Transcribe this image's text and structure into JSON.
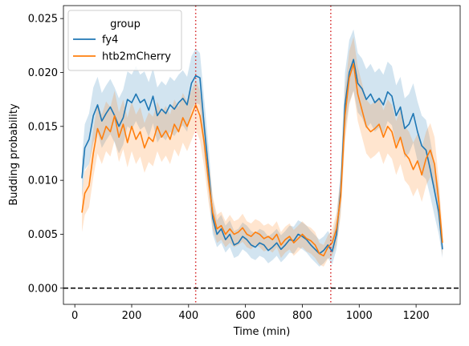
{
  "chart_data": {
    "type": "line",
    "title": "",
    "xlabel": "Time (min)",
    "ylabel": "Budding probability",
    "xlim": [
      -40,
      1355
    ],
    "ylim": [
      -0.0015,
      0.0262
    ],
    "xticks": [
      0,
      200,
      400,
      600,
      800,
      1000,
      1200
    ],
    "xtick_labels": [
      "0",
      "200",
      "400",
      "600",
      "800",
      "1000",
      "1200"
    ],
    "yticks": [
      0.0,
      0.005,
      0.01,
      0.015,
      0.02,
      0.025
    ],
    "ytick_labels": [
      "0.000",
      "0.005",
      "0.010",
      "0.015",
      "0.020",
      "0.025"
    ],
    "grid": false,
    "legend": {
      "title": "group",
      "placement": "upper-left"
    },
    "vlines": [
      {
        "x": 425,
        "style": "dotted",
        "color": "#d62728"
      },
      {
        "x": 900,
        "style": "dotted",
        "color": "#d62728"
      }
    ],
    "hlines": [
      {
        "y": 0.0,
        "style": "dashed",
        "color": "#000000"
      }
    ],
    "series": [
      {
        "name": "fy4",
        "color": "#1f77b4",
        "x": [
          25,
          35,
          50,
          65,
          80,
          95,
          110,
          125,
          140,
          155,
          170,
          185,
          200,
          215,
          230,
          245,
          260,
          275,
          290,
          305,
          320,
          335,
          350,
          365,
          380,
          395,
          410,
          425,
          440,
          455,
          470,
          485,
          500,
          515,
          530,
          545,
          560,
          575,
          590,
          605,
          620,
          635,
          650,
          665,
          680,
          695,
          710,
          725,
          740,
          755,
          770,
          785,
          800,
          815,
          830,
          845,
          860,
          875,
          890,
          905,
          920,
          935,
          950,
          965,
          980,
          995,
          1010,
          1025,
          1040,
          1055,
          1070,
          1085,
          1100,
          1115,
          1130,
          1145,
          1160,
          1175,
          1190,
          1205,
          1220,
          1235,
          1250,
          1265,
          1280,
          1293
        ],
        "y": [
          0.0102,
          0.013,
          0.0138,
          0.016,
          0.017,
          0.0155,
          0.0162,
          0.0168,
          0.016,
          0.015,
          0.0158,
          0.0175,
          0.0172,
          0.018,
          0.0172,
          0.0175,
          0.0165,
          0.0178,
          0.016,
          0.0166,
          0.0162,
          0.017,
          0.0166,
          0.0172,
          0.0176,
          0.017,
          0.019,
          0.0197,
          0.0195,
          0.015,
          0.011,
          0.0065,
          0.005,
          0.0055,
          0.0045,
          0.005,
          0.004,
          0.0042,
          0.0048,
          0.0045,
          0.004,
          0.0038,
          0.0042,
          0.004,
          0.0035,
          0.0038,
          0.0042,
          0.0036,
          0.004,
          0.0045,
          0.0044,
          0.005,
          0.0048,
          0.0045,
          0.004,
          0.0036,
          0.0032,
          0.0035,
          0.004,
          0.0034,
          0.005,
          0.009,
          0.017,
          0.02,
          0.0212,
          0.019,
          0.0185,
          0.0175,
          0.018,
          0.0172,
          0.0176,
          0.017,
          0.0182,
          0.0178,
          0.016,
          0.0168,
          0.0148,
          0.0152,
          0.0162,
          0.0145,
          0.0132,
          0.0128,
          0.011,
          0.009,
          0.007,
          0.0036
        ],
        "lo": [
          0.0085,
          0.011,
          0.0115,
          0.0135,
          0.0145,
          0.013,
          0.0137,
          0.0143,
          0.0135,
          0.0125,
          0.0133,
          0.015,
          0.0147,
          0.0155,
          0.0147,
          0.015,
          0.014,
          0.0153,
          0.0135,
          0.0141,
          0.0137,
          0.0145,
          0.0141,
          0.0147,
          0.0151,
          0.0145,
          0.0165,
          0.0172,
          0.017,
          0.0125,
          0.009,
          0.005,
          0.0038,
          0.0042,
          0.0033,
          0.0038,
          0.0028,
          0.003,
          0.0036,
          0.0033,
          0.0028,
          0.0026,
          0.003,
          0.0028,
          0.0023,
          0.0026,
          0.003,
          0.0024,
          0.0028,
          0.0033,
          0.0032,
          0.0038,
          0.0036,
          0.0033,
          0.0028,
          0.0024,
          0.002,
          0.0023,
          0.0028,
          0.0022,
          0.0036,
          0.0072,
          0.0145,
          0.0172,
          0.0183,
          0.0163,
          0.0158,
          0.0148,
          0.0153,
          0.0145,
          0.0149,
          0.0143,
          0.0155,
          0.0151,
          0.0133,
          0.0141,
          0.0121,
          0.0125,
          0.0135,
          0.0118,
          0.0105,
          0.0101,
          0.0085,
          0.0067,
          0.005,
          0.0028
        ],
        "hi": [
          0.012,
          0.0152,
          0.0162,
          0.0186,
          0.0196,
          0.0181,
          0.0188,
          0.0194,
          0.0186,
          0.0176,
          0.0184,
          0.0201,
          0.0198,
          0.0206,
          0.0198,
          0.0201,
          0.0191,
          0.0204,
          0.0186,
          0.0192,
          0.0188,
          0.0196,
          0.0192,
          0.0198,
          0.0202,
          0.0196,
          0.0215,
          0.0222,
          0.0218,
          0.0175,
          0.0132,
          0.0082,
          0.0063,
          0.0068,
          0.0058,
          0.0063,
          0.0053,
          0.0055,
          0.0061,
          0.0058,
          0.0053,
          0.0051,
          0.0055,
          0.0053,
          0.0048,
          0.0051,
          0.0055,
          0.0049,
          0.0053,
          0.0058,
          0.0057,
          0.0063,
          0.0061,
          0.0058,
          0.0053,
          0.0049,
          0.0045,
          0.0048,
          0.0053,
          0.0047,
          0.0065,
          0.011,
          0.02,
          0.023,
          0.024,
          0.0218,
          0.0213,
          0.0203,
          0.0208,
          0.02,
          0.0204,
          0.0198,
          0.021,
          0.0206,
          0.0188,
          0.0196,
          0.0176,
          0.018,
          0.019,
          0.0173,
          0.016,
          0.0156,
          0.0137,
          0.0115,
          0.0092,
          0.0045
        ]
      },
      {
        "name": "htb2mCherry",
        "color": "#ff7f0e",
        "x": [
          25,
          35,
          50,
          65,
          80,
          95,
          110,
          125,
          140,
          155,
          170,
          185,
          200,
          215,
          230,
          245,
          260,
          275,
          290,
          305,
          320,
          335,
          350,
          365,
          380,
          395,
          410,
          425,
          440,
          455,
          470,
          485,
          500,
          515,
          530,
          545,
          560,
          575,
          590,
          605,
          620,
          635,
          650,
          665,
          680,
          695,
          710,
          725,
          740,
          755,
          770,
          785,
          800,
          815,
          830,
          845,
          860,
          875,
          890,
          905,
          920,
          935,
          950,
          965,
          980,
          995,
          1010,
          1025,
          1040,
          1055,
          1070,
          1085,
          1100,
          1115,
          1130,
          1145,
          1160,
          1175,
          1190,
          1205,
          1220,
          1235,
          1250,
          1265,
          1280,
          1293
        ],
        "y": [
          0.007,
          0.0088,
          0.0095,
          0.0125,
          0.0148,
          0.0138,
          0.015,
          0.0145,
          0.016,
          0.014,
          0.0152,
          0.0135,
          0.015,
          0.0138,
          0.0145,
          0.013,
          0.014,
          0.0136,
          0.015,
          0.014,
          0.0146,
          0.0138,
          0.0152,
          0.0145,
          0.0158,
          0.015,
          0.016,
          0.017,
          0.016,
          0.0135,
          0.01,
          0.007,
          0.0055,
          0.0058,
          0.005,
          0.0055,
          0.005,
          0.0052,
          0.0056,
          0.005,
          0.0048,
          0.0052,
          0.005,
          0.0046,
          0.0048,
          0.0045,
          0.005,
          0.004,
          0.0045,
          0.0048,
          0.0042,
          0.0046,
          0.005,
          0.0046,
          0.0044,
          0.004,
          0.0032,
          0.003,
          0.0038,
          0.0042,
          0.0055,
          0.0085,
          0.016,
          0.0195,
          0.0208,
          0.018,
          0.0165,
          0.015,
          0.0145,
          0.0148,
          0.0152,
          0.014,
          0.015,
          0.0145,
          0.013,
          0.014,
          0.0125,
          0.012,
          0.011,
          0.0118,
          0.0105,
          0.012,
          0.0128,
          0.0115,
          0.008,
          0.0042
        ],
        "lo": [
          0.0052,
          0.0068,
          0.0075,
          0.0103,
          0.0125,
          0.0115,
          0.0127,
          0.0122,
          0.0137,
          0.0117,
          0.0129,
          0.0112,
          0.0127,
          0.0115,
          0.0122,
          0.0107,
          0.0117,
          0.0113,
          0.0127,
          0.0117,
          0.0123,
          0.0115,
          0.0129,
          0.0122,
          0.0135,
          0.0127,
          0.0137,
          0.0147,
          0.0137,
          0.0112,
          0.008,
          0.0055,
          0.0042,
          0.0045,
          0.0038,
          0.0042,
          0.0038,
          0.004,
          0.0043,
          0.0038,
          0.0036,
          0.004,
          0.0038,
          0.0034,
          0.0036,
          0.0033,
          0.0038,
          0.0028,
          0.0033,
          0.0036,
          0.003,
          0.0034,
          0.0038,
          0.0034,
          0.0032,
          0.0028,
          0.0022,
          0.002,
          0.0027,
          0.003,
          0.004,
          0.0067,
          0.0135,
          0.017,
          0.0183,
          0.0155,
          0.014,
          0.0125,
          0.012,
          0.0123,
          0.0127,
          0.0115,
          0.0125,
          0.012,
          0.0105,
          0.0115,
          0.01,
          0.0095,
          0.0085,
          0.0093,
          0.008,
          0.0095,
          0.0103,
          0.009,
          0.006,
          0.003
        ],
        "hi": [
          0.0088,
          0.0108,
          0.0115,
          0.0147,
          0.0171,
          0.0161,
          0.0173,
          0.0168,
          0.0183,
          0.0163,
          0.0175,
          0.0158,
          0.0173,
          0.0161,
          0.0168,
          0.0153,
          0.0163,
          0.0159,
          0.0173,
          0.0163,
          0.0169,
          0.0161,
          0.0175,
          0.0168,
          0.0181,
          0.0173,
          0.0183,
          0.0193,
          0.0183,
          0.0158,
          0.012,
          0.0085,
          0.0068,
          0.0071,
          0.0062,
          0.0068,
          0.0062,
          0.0064,
          0.0069,
          0.0062,
          0.006,
          0.0064,
          0.0062,
          0.0058,
          0.006,
          0.0057,
          0.0062,
          0.0052,
          0.0057,
          0.006,
          0.0054,
          0.0058,
          0.0062,
          0.0058,
          0.0056,
          0.0052,
          0.0042,
          0.004,
          0.0049,
          0.0054,
          0.007,
          0.0103,
          0.0185,
          0.022,
          0.0233,
          0.0205,
          0.019,
          0.0175,
          0.017,
          0.0173,
          0.0177,
          0.0165,
          0.0175,
          0.017,
          0.0155,
          0.0165,
          0.015,
          0.0145,
          0.0135,
          0.0143,
          0.013,
          0.0145,
          0.0153,
          0.014,
          0.01,
          0.0054
        ]
      }
    ]
  }
}
